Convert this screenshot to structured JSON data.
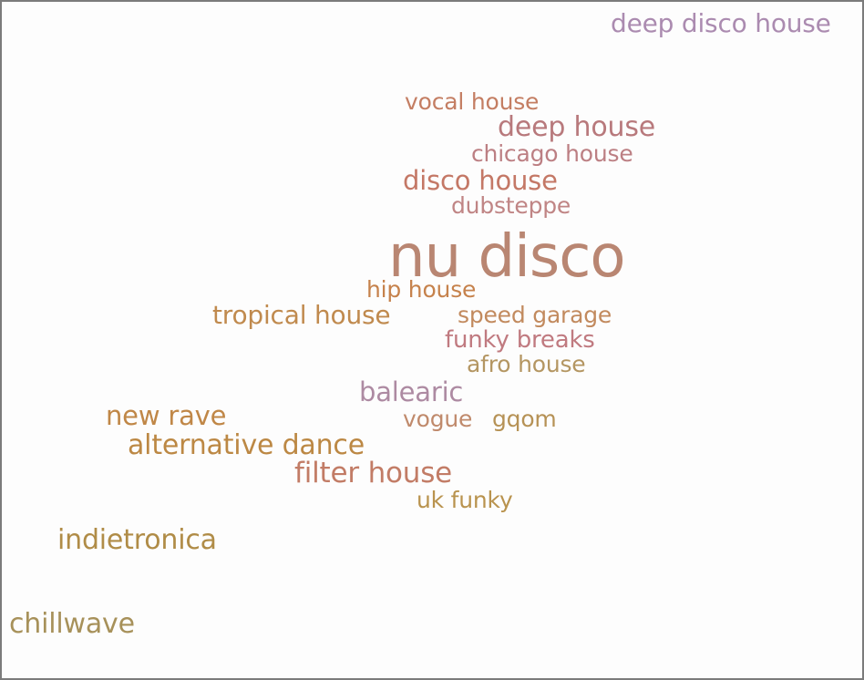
{
  "words": [
    {
      "id": "deep-disco-house",
      "text": "deep disco house",
      "color": "#ab8bb0"
    },
    {
      "id": "vocal-house",
      "text": "vocal house",
      "color": "#c47e63"
    },
    {
      "id": "deep-house",
      "text": "deep house",
      "color": "#b8797c"
    },
    {
      "id": "chicago-house",
      "text": "chicago house",
      "color": "#bc7f83"
    },
    {
      "id": "disco-house",
      "text": "disco house",
      "color": "#c47866"
    },
    {
      "id": "dubsteppe",
      "text": "dubsteppe",
      "color": "#c08585"
    },
    {
      "id": "nu-disco",
      "text": "nu disco",
      "color": "#b98672"
    },
    {
      "id": "hip-house",
      "text": "hip house",
      "color": "#c6824c"
    },
    {
      "id": "tropical-house",
      "text": "tropical house",
      "color": "#c08a4e"
    },
    {
      "id": "speed-garage",
      "text": "speed garage",
      "color": "#c28a5e"
    },
    {
      "id": "funky-breaks",
      "text": "funky breaks",
      "color": "#c07a80"
    },
    {
      "id": "afro-house",
      "text": "afro house",
      "color": "#b49662"
    },
    {
      "id": "balearic",
      "text": "balearic",
      "color": "#ad8aa2"
    },
    {
      "id": "new-rave",
      "text": "new rave",
      "color": "#c08747"
    },
    {
      "id": "vogue",
      "text": "vogue",
      "color": "#c08a6c"
    },
    {
      "id": "gqom",
      "text": "gqom",
      "color": "#b69256"
    },
    {
      "id": "alternative-dance",
      "text": "alternative dance",
      "color": "#bc8844"
    },
    {
      "id": "filter-house",
      "text": "filter house",
      "color": "#c27c66"
    },
    {
      "id": "uk-funky",
      "text": "uk funky",
      "color": "#b9934e"
    },
    {
      "id": "indietronica",
      "text": "indietronica",
      "color": "#b08c47"
    },
    {
      "id": "chillwave",
      "text": "chillwave",
      "color": "#a7915a"
    }
  ]
}
